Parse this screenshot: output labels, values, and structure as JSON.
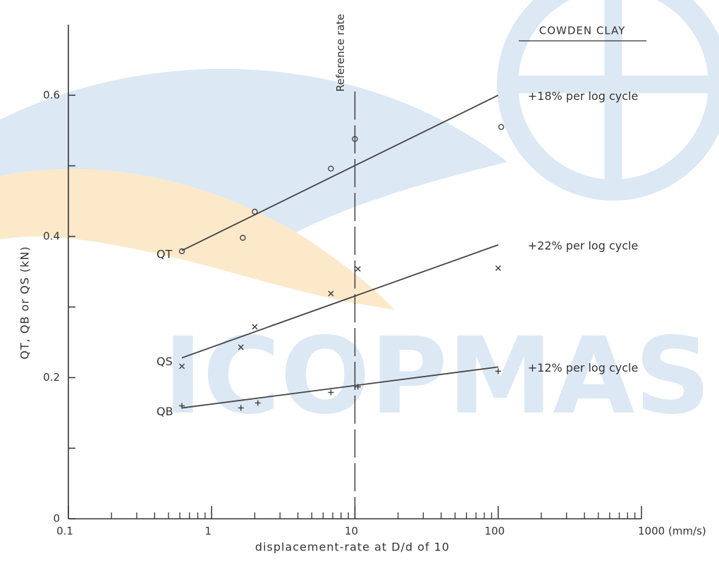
{
  "chart_data": {
    "type": "scatter",
    "title": "COWDEN CLAY",
    "watermark": "ICOPMAS",
    "x_label": "displacement-rate at D/d of 10",
    "y_label": "QT, QB or QS (kN)",
    "log_x": true,
    "xlim": [
      0.1,
      1000
    ],
    "ylim": [
      0,
      0.7
    ],
    "xticks": [
      {
        "value": 0.1,
        "label": "0.1"
      },
      1,
      10,
      100,
      {
        "value": 1000,
        "label": "1000 (mm/s)"
      }
    ],
    "yticks": [
      0,
      0.2,
      0.4,
      0.6
    ],
    "yminor": [
      0.1,
      0.3,
      0.5
    ],
    "reference": {
      "x": 10,
      "label": "Reference rate"
    },
    "color": "#444444",
    "series": [
      {
        "name": "QT",
        "marker": "circle",
        "x": [
          0.62,
          1.65,
          2.0,
          6.8,
          10,
          105
        ],
        "values": [
          0.379,
          0.398,
          0.435,
          0.496,
          0.538,
          0.555
        ],
        "fit_x": [
          0.62,
          100
        ],
        "fit_values": [
          0.38,
          0.6
        ],
        "annotation": "+18% per log cycle"
      },
      {
        "name": "QS",
        "marker": "cross",
        "x": [
          0.62,
          1.6,
          2.0,
          6.8,
          10.5,
          100
        ],
        "values": [
          0.216,
          0.243,
          0.272,
          0.319,
          0.354,
          0.355
        ],
        "fit_x": [
          0.62,
          100
        ],
        "fit_values": [
          0.228,
          0.388
        ],
        "annotation": "+22% per log cycle"
      },
      {
        "name": "QB",
        "marker": "plus",
        "x": [
          0.62,
          1.6,
          2.1,
          6.8,
          10.5,
          100
        ],
        "values": [
          0.16,
          0.157,
          0.164,
          0.179,
          0.187,
          0.209
        ],
        "fit_x": [
          0.62,
          100
        ],
        "fit_values": [
          0.157,
          0.215
        ],
        "annotation": "+12% per log cycle"
      }
    ]
  }
}
